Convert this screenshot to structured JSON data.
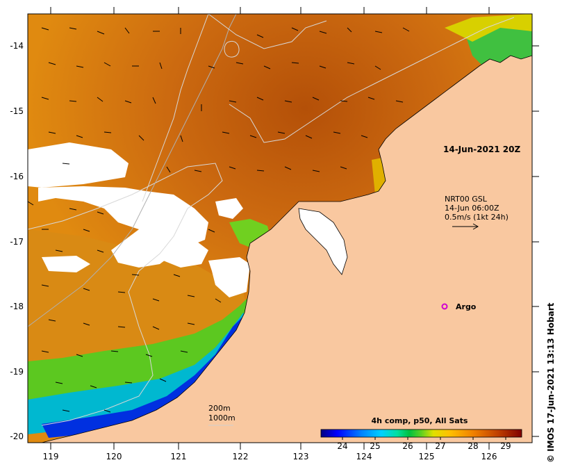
{
  "map": {
    "lon_ticks": [
      "119",
      "120",
      "121",
      "122",
      "123",
      "124",
      "125",
      "126"
    ],
    "lat_ticks": [
      "-14",
      "-15",
      "-16",
      "-17",
      "-18",
      "-19",
      "-20"
    ],
    "timestamp": "14-Jun-2021 20Z",
    "current_info": [
      "NRT00 GSL",
      "14-Jun 06:00Z",
      "0.5m/s (1kt 24h)"
    ],
    "argo_label": "Argo",
    "bathy_legend": [
      "200m",
      "1000m"
    ],
    "colorbar": {
      "title": "4h comp, p50, All Sats",
      "ticks": [
        "24",
        "25",
        "26",
        "27",
        "28",
        "29"
      ],
      "colors": [
        "#000080",
        "#0000ff",
        "#0070ff",
        "#00c0ff",
        "#00e0b0",
        "#00c040",
        "#40d020",
        "#c0e000",
        "#ffd000",
        "#ff9000",
        "#e06000",
        "#b03000",
        "#800000"
      ]
    },
    "credit": "© IMOS 17-Jun-2021 13:13 Hobart",
    "colors": {
      "land": "#f9c8a0",
      "no_data": "#ffffff",
      "warm": "#c86410"
    }
  }
}
